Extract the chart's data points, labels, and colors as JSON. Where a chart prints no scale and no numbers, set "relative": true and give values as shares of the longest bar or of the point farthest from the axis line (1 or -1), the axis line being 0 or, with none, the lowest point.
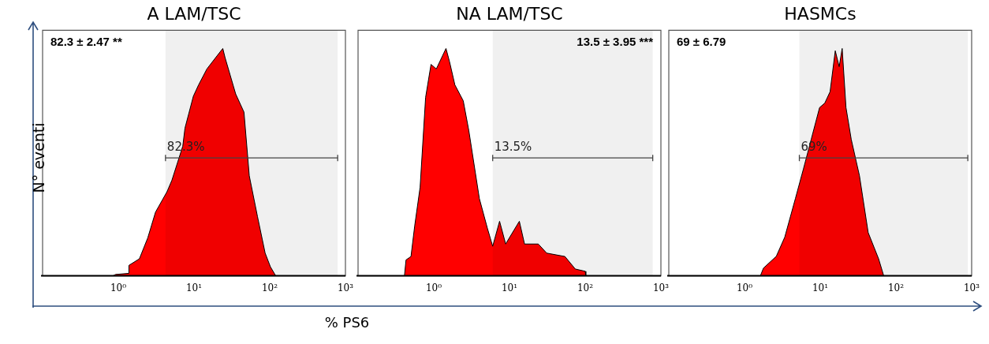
{
  "chart_data": [
    {
      "type": "area",
      "title": "A LAM/TSC",
      "ylabel": "N° eventi",
      "relative": true,
      "log": "x",
      "legend": false,
      "grid": false,
      "xlim": [
        0.1,
        1000
      ],
      "xticks": [
        {
          "value": 1,
          "label": "10⁰"
        },
        {
          "value": 10,
          "label": "10¹"
        },
        {
          "value": 100,
          "label": "10²"
        },
        {
          "value": 1000,
          "label": "10³"
        }
      ],
      "series": [
        {
          "color": "#ff0000",
          "x": [
            0.85,
            0.92,
            1.38,
            1.38,
            1.9,
            2.45,
            3.1,
            4.4,
            5.1,
            7.1,
            7.6,
            9.8,
            11.5,
            14.8,
            20.4,
            24,
            25.7,
            35.5,
            45.7,
            53.7,
            69,
            87,
            102,
            120
          ],
          "values": [
            0,
            0.006,
            0.011,
            0.046,
            0.075,
            0.167,
            0.28,
            0.37,
            0.42,
            0.57,
            0.65,
            0.79,
            0.84,
            0.91,
            0.97,
            1,
            0.96,
            0.8,
            0.72,
            0.44,
            0.26,
            0.1,
            0.04,
            0
          ]
        }
      ],
      "bands": [
        {
          "axis": "x",
          "from": 4.2,
          "to": 790,
          "label": "82.3%"
        }
      ],
      "annotations": [
        "82.3 ± 2.47 **"
      ]
    },
    {
      "type": "area",
      "title": "NA LAM/TSC",
      "xlabel": "% PS6",
      "relative": true,
      "log": "x",
      "legend": false,
      "grid": false,
      "xlim": [
        0.1,
        1000
      ],
      "xticks": [
        {
          "value": 1,
          "label": "10⁰"
        },
        {
          "value": 10,
          "label": "10¹"
        },
        {
          "value": 100,
          "label": "10²"
        },
        {
          "value": 1000,
          "label": "10³"
        }
      ],
      "series": [
        {
          "color": "#ff0000",
          "x": [
            0.41,
            0.43,
            0.5,
            0.56,
            0.66,
            0.78,
            0.92,
            1.08,
            1.45,
            1.62,
            1.9,
            2.45,
            2.9,
            4.0,
            5.1,
            6.0,
            7.4,
            8.9,
            13.5,
            15.8,
            24,
            31,
            54,
            74,
            100,
            102
          ],
          "values": [
            0,
            0.07,
            0.085,
            0.22,
            0.39,
            0.785,
            0.93,
            0.91,
            1,
            0.94,
            0.84,
            0.77,
            0.64,
            0.34,
            0.21,
            0.13,
            0.24,
            0.14,
            0.24,
            0.14,
            0.14,
            0.1,
            0.085,
            0.03,
            0.02,
            0
          ]
        }
      ],
      "bands": [
        {
          "axis": "x",
          "from": 6.0,
          "to": 780,
          "label": "13.5%"
        }
      ],
      "annotations": [
        "13.5 ± 3.95 ***"
      ]
    },
    {
      "type": "area",
      "title": "HASMCs",
      "relative": true,
      "log": "x",
      "legend": false,
      "grid": false,
      "xlim": [
        0.1,
        1000
      ],
      "xticks": [
        {
          "value": 1,
          "label": "10⁰"
        },
        {
          "value": 10,
          "label": "10¹"
        },
        {
          "value": 100,
          "label": "10²"
        },
        {
          "value": 1000,
          "label": "10³"
        }
      ],
      "series": [
        {
          "color": "#ff0000",
          "x": [
            1.62,
            1.78,
            2.63,
            3.4,
            4.7,
            6.0,
            7.6,
            9.8,
            11.5,
            13.5,
            15.8,
            17.8,
            19.5,
            21.9,
            25.7,
            33,
            43,
            59,
            69
          ],
          "values": [
            0,
            0.034,
            0.086,
            0.17,
            0.34,
            0.47,
            0.6,
            0.74,
            0.76,
            0.81,
            0.99,
            0.92,
            1,
            0.74,
            0.6,
            0.44,
            0.19,
            0.075,
            0
          ]
        }
      ],
      "bands": [
        {
          "axis": "x",
          "from": 5.3,
          "to": 890,
          "label": "69%"
        }
      ],
      "annotations": [
        "69 ± 6.79"
      ]
    }
  ]
}
